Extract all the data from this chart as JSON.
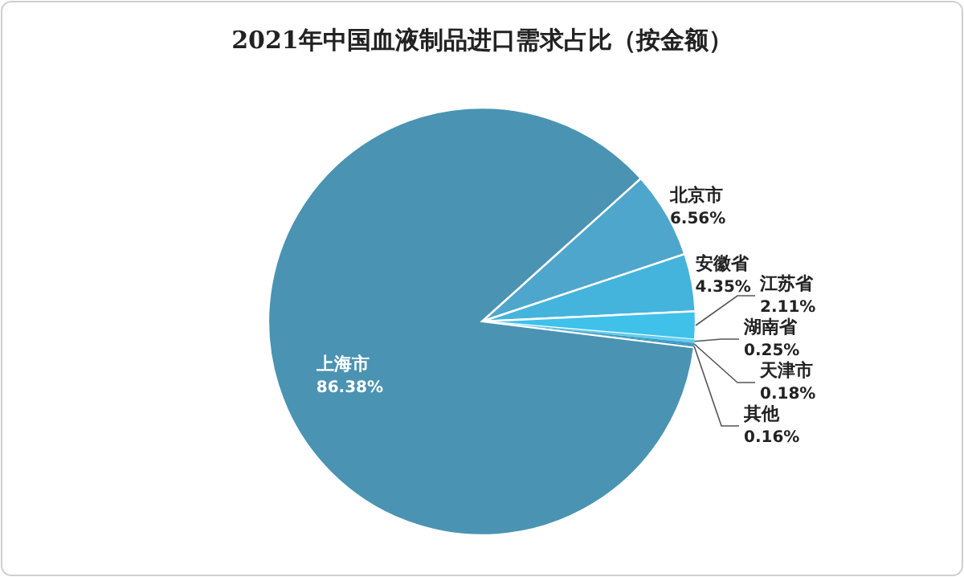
{
  "chart_data": {
    "type": "pie",
    "title": "2021年中国血液制品进口需求占比（按金额）",
    "categories": [
      "北京市",
      "安徽省",
      "江苏省",
      "湖南省",
      "天津市",
      "其他",
      "上海市"
    ],
    "values": [
      6.56,
      4.35,
      2.11,
      0.25,
      0.18,
      0.16,
      86.38
    ],
    "colors": [
      "#4fa6cc",
      "#45b4dc",
      "#3fc1ea",
      "#62cdef",
      "#3a9cc4",
      "#2f86ad",
      "#4a93b2"
    ],
    "value_labels": [
      "6.56%",
      "4.35%",
      "2.11%",
      "0.25%",
      "0.18%",
      "0.16%",
      "86.38%"
    ]
  }
}
